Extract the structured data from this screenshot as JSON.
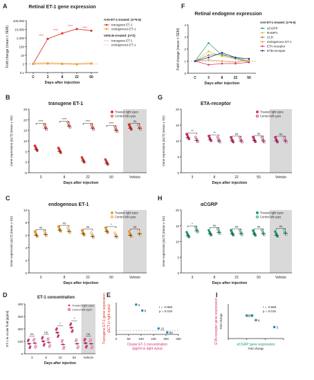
{
  "panels": {
    "A": {
      "letter": "A",
      "title": "Retinal ET-1 gene expression",
      "ylabel": "Fold change (mean ± SEM)",
      "xlabel": "Days after injection",
      "yticks": [
        "100,000",
        "10,000",
        "1,000",
        "100",
        "10",
        "1",
        "0.1"
      ],
      "xticks": [
        "C",
        "3",
        "8",
        "22",
        "50"
      ],
      "legend": {
        "aav_head": "AAV-ET-1-treated: (n=5-6)",
        "veh_head": "Vehicle-treated: (n=2)",
        "transgene": "transgene ET-1",
        "endogenous": "endogenous ET-1"
      },
      "stars": [
        "****",
        "****",
        "****",
        "****"
      ]
    },
    "B": {
      "letter": "B",
      "title": "transgene ET-1",
      "ylabel": "Gene expression [ΔCT] (mean ± SD)",
      "xlabel": "Days after injection",
      "xticks": [
        "3",
        "8",
        "22",
        "50",
        "Vehicle"
      ],
      "yticks": [
        "25",
        "20",
        "15",
        "10",
        "5",
        "0",
        "-5"
      ],
      "legend": [
        "Treated right eyes",
        "Control left eyes"
      ],
      "sig": [
        "****",
        "****",
        "****",
        "****",
        "ns"
      ]
    },
    "C": {
      "letter": "C",
      "title": "endogenous ET-1",
      "ylabel": "Gene expression [ΔCT] (mean ± SD)",
      "xlabel": "Days after injection",
      "xticks": [
        "3",
        "8",
        "22",
        "50",
        "Vehicle"
      ],
      "yticks": [
        "10",
        "8",
        "6",
        "4",
        "2",
        "0"
      ],
      "legend": [
        "Treated right eyes",
        "Control left eyes"
      ],
      "sig": [
        "ns",
        "ns",
        "ns",
        "*",
        "ns"
      ]
    },
    "D": {
      "letter": "D",
      "title": "ET-1 concentration",
      "ylabel": "ET-1 in ocular fluid [pg/ml]",
      "xlabel": "Days after injection",
      "xticks": [
        "3",
        "8",
        "22",
        "50",
        "Vehicle"
      ],
      "yticks": [
        "400",
        "300",
        "200",
        "100",
        "0"
      ],
      "legend": [
        "Treated right eyes",
        "Control left eyes"
      ],
      "sig": [
        "ns",
        "ns",
        "*",
        "*",
        "ns"
      ]
    },
    "E": {
      "letter": "E",
      "ylabel": "Transgene ET-1 gene expression (ΔCT in right eyes)",
      "xlabel": "Ocular ET-1 concentration (pg/ml in right eyes)",
      "xticks": [
        "0",
        "50",
        "100",
        "150",
        "200",
        "250"
      ],
      "stat": "r = -0.982",
      "p": "p = 0.018",
      "points": [
        "3",
        "8",
        "22",
        "50"
      ]
    },
    "F": {
      "letter": "F",
      "title": "Retinal endogene expression",
      "ylabel": "Fold change (mean ± SEM)",
      "xlabel": "Days after injection",
      "yticks": [
        "4",
        "3",
        "2",
        "1",
        "0"
      ],
      "xticks": [
        "C",
        "3",
        "8",
        "22",
        "50"
      ],
      "legend_head": "AAV-ET-1-treated: (n=5-6)",
      "legend": [
        "αCGRP",
        "RAMP1",
        "CLR",
        "endogenous ET-1",
        "ETA-receptor",
        "ETB-receptor"
      ]
    },
    "G": {
      "letter": "G",
      "title": "ETA-receptor",
      "ylabel": "Gene expression [ΔCT] (mean ± SD)",
      "xlabel": "Days after injection",
      "xticks": [
        "3",
        "8",
        "22",
        "50",
        "Vehicle"
      ],
      "yticks": [
        "20",
        "15",
        "10",
        "5",
        "0"
      ],
      "legend": [
        "Treated right eyes",
        "Control left eyes"
      ],
      "sig": [
        "**",
        "**",
        "ns",
        "ns",
        "ns"
      ]
    },
    "H": {
      "letter": "H",
      "title": "αCGRP",
      "ylabel": "Gene expression [ΔCT] (mean ± SD)",
      "xlabel": "Days after injection",
      "xticks": [
        "3",
        "8",
        "22",
        "50",
        "Vehicle"
      ],
      "yticks": [
        "20",
        "15",
        "10",
        "5",
        "0"
      ],
      "legend": [
        "Treated right eyes",
        "Control left eyes"
      ],
      "sig": [
        "*",
        "ns",
        "ns",
        "ns",
        "ns"
      ]
    },
    "I": {
      "letter": "I",
      "ylabel": "ETA-receptor gene expression Fold change",
      "xlabel": "αCGRP gene expression Fold change",
      "stat": "r = -0.965",
      "p": "p = 0.015",
      "points": [
        "22",
        "50",
        "8",
        "3"
      ]
    }
  },
  "colors": {
    "red": "#e0302a",
    "orange": "#f09a2a",
    "pink": "#d6337a",
    "green": "#1fa06a",
    "teal": "#2e8fb0",
    "navy": "#1f3a7a",
    "gray": "#d9d9d9"
  },
  "chart_data": [
    {
      "type": "line",
      "title": "Retinal ET-1 gene expression",
      "ylabel": "Fold change (mean ± SEM)",
      "xlabel": "Days after injection",
      "categories": [
        "C",
        "3",
        "8",
        "22",
        "50"
      ],
      "yscale": "log",
      "ylim": [
        0.1,
        100000
      ],
      "series": [
        {
          "name": "transgene ET-1",
          "values": [
            1,
            800,
            3500,
            11000,
            7000
          ]
        },
        {
          "name": "endogenous ET-1",
          "values": [
            1,
            1.1,
            1.0,
            0.9,
            1.1
          ]
        }
      ]
    },
    {
      "type": "scatter",
      "title": "transgene ET-1",
      "ylabel": "Gene expression [ΔCT] (mean ± SD)",
      "categories": [
        "3",
        "8",
        "22",
        "50",
        "Vehicle"
      ],
      "ylim": [
        -5,
        25
      ],
      "series": [
        {
          "name": "Treated right eyes",
          "values": [
            6,
            5,
            0.5,
            -0.5,
            16
          ]
        },
        {
          "name": "Control left eyes",
          "values": [
            16,
            17,
            16,
            15,
            16
          ]
        }
      ]
    },
    {
      "type": "scatter",
      "title": "endogenous ET-1",
      "ylabel": "Gene expression [ΔCT] (mean ± SD)",
      "categories": [
        "3",
        "8",
        "22",
        "50",
        "Vehicle"
      ],
      "ylim": [
        0,
        10
      ],
      "series": [
        {
          "name": "Treated right eyes",
          "values": [
            6,
            6.8,
            6.2,
            6.6,
            6
          ]
        },
        {
          "name": "Control left eyes",
          "values": [
            6.1,
            6.6,
            5.8,
            5.8,
            6.2
          ]
        }
      ]
    },
    {
      "type": "scatter",
      "title": "ET-1 concentration",
      "ylabel": "ET-1 in ocular fluid [pg/ml]",
      "categories": [
        "3",
        "8",
        "22",
        "50",
        "Vehicle"
      ],
      "ylim": [
        0,
        400
      ],
      "series": [
        {
          "name": "Treated right eyes",
          "values": [
            80,
            100,
            170,
            210,
            85
          ]
        },
        {
          "name": "Control left eyes",
          "values": [
            85,
            90,
            75,
            80,
            80
          ]
        }
      ]
    },
    {
      "type": "scatter",
      "xlabel": "Ocular ET-1 concentration (pg/ml in right eyes)",
      "ylabel": "Transgene ET-1 gene expression (ΔCT in right eyes)",
      "xlim": [
        0,
        250
      ],
      "series": [
        {
          "name": "",
          "x": [
            80,
            105,
            170,
            205
          ],
          "y": [
            6.5,
            5,
            0.5,
            -0.5
          ],
          "labels": [
            "3",
            "8",
            "22",
            "50"
          ]
        }
      ]
    },
    {
      "type": "line",
      "title": "Retinal endogene expression",
      "ylabel": "Fold change (mean ± SEM)",
      "categories": [
        "C",
        "3",
        "8",
        "22",
        "50"
      ],
      "ylim": [
        0,
        4
      ],
      "series": [
        {
          "name": "αCGRP",
          "values": [
            1,
            2.5,
            1.5,
            1.3,
            1.0
          ]
        },
        {
          "name": "RAMP1",
          "values": [
            1,
            1.8,
            1.4,
            1.2,
            1.0
          ]
        },
        {
          "name": "CLR",
          "values": [
            1,
            1.5,
            1.6,
            1.2,
            0.9
          ]
        },
        {
          "name": "endogenous ET-1",
          "values": [
            1,
            1.1,
            1.0,
            0.9,
            1.1
          ]
        },
        {
          "name": "ETA-receptor",
          "values": [
            1,
            0.7,
            0.8,
            0.8,
            0.9
          ]
        },
        {
          "name": "ETB-receptor",
          "values": [
            1,
            1.3,
            1.7,
            1.3,
            1.2
          ]
        }
      ]
    },
    {
      "type": "scatter",
      "title": "ETA-receptor",
      "ylabel": "Gene expression [ΔCT] (mean ± SD)",
      "categories": [
        "3",
        "8",
        "22",
        "50",
        "Vehicle"
      ],
      "ylim": [
        0,
        20
      ],
      "series": [
        {
          "name": "Treated right eyes",
          "values": [
            11,
            10.4,
            10,
            10.1,
            10
          ]
        },
        {
          "name": "Control left eyes",
          "values": [
            10.1,
            10,
            10,
            10,
            10
          ]
        }
      ]
    },
    {
      "type": "scatter",
      "title": "αCGRP",
      "ylabel": "Gene expression [ΔCT] (mean ± SD)",
      "categories": [
        "3",
        "8",
        "22",
        "50",
        "Vehicle"
      ],
      "ylim": [
        0,
        20
      ],
      "series": [
        {
          "name": "Treated right eyes",
          "values": [
            11.8,
            12.4,
            12.4,
            12.3,
            12
          ]
        },
        {
          "name": "Control left eyes",
          "values": [
            13.4,
            12.9,
            12.5,
            12.5,
            12.6
          ]
        }
      ]
    },
    {
      "type": "scatter",
      "xlabel": "αCGRP gene expression Fold change",
      "ylabel": "ETA-receptor gene expression Fold change",
      "series": [
        {
          "name": "",
          "x": [
            1.3,
            1.0,
            1.5,
            2.5
          ],
          "y": [
            1.0,
            1.0,
            0.8,
            0.5
          ],
          "labels": [
            "22",
            "50",
            "8",
            "3"
          ]
        }
      ]
    }
  ]
}
